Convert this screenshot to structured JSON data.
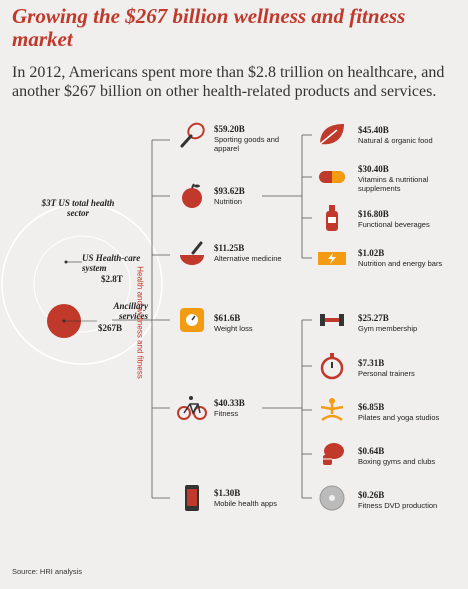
{
  "title": "Growing the $267 billion wellness and fitness market",
  "subtitle": "In 2012, Americans spent more than $2.8 trillion on healthcare, and another $267 billion on other health-related products and services.",
  "sector": {
    "total_label": "$3T US total health sector",
    "us_label": "US Health-care system",
    "us_value": "$2.8T",
    "ancillary_label": "Ancillary services",
    "ancillary_value": "$267B",
    "vertical_label": "Health and wellness and fitness"
  },
  "categories": [
    {
      "value": "$59.20B",
      "label": "Sporting goods and apparel",
      "icon": "tennis-racket-icon"
    },
    {
      "value": "$93.62B",
      "label": "Nutrition",
      "icon": "apple-icon"
    },
    {
      "value": "$11.25B",
      "label": "Alternative medicine",
      "icon": "mortar-pestle-icon"
    },
    {
      "value": "$61.6B",
      "label": "Weight loss",
      "icon": "scale-icon"
    },
    {
      "value": "$40.33B",
      "label": "Fitness",
      "icon": "bicycle-icon"
    },
    {
      "value": "$1.30B",
      "label": "Mobile health apps",
      "icon": "mobile-phone-icon"
    }
  ],
  "nutrition_sub": [
    {
      "value": "$45.40B",
      "label": "Natural & organic food",
      "icon": "leaf-icon"
    },
    {
      "value": "$30.40B",
      "label": "Vitamins & nutritional supplements",
      "icon": "pill-icon"
    },
    {
      "value": "$16.80B",
      "label": "Functional beverages",
      "icon": "beverage-bottle-icon"
    },
    {
      "value": "$1.02B",
      "label": "Nutrition and energy bars",
      "icon": "energy-bar-icon"
    }
  ],
  "fitness_sub": [
    {
      "value": "$25.27B",
      "label": "Gym membership",
      "icon": "dumbbell-icon"
    },
    {
      "value": "$7.31B",
      "label": "Personal trainers",
      "icon": "stopwatch-icon"
    },
    {
      "value": "$6.85B",
      "label": "Pilates and yoga studios",
      "icon": "yoga-icon"
    },
    {
      "value": "$0.64B",
      "label": "Boxing gyms and clubs",
      "icon": "boxing-glove-icon"
    },
    {
      "value": "$0.26B",
      "label": "Fitness DVD production",
      "icon": "dvd-icon"
    }
  ],
  "source": "Source: HRI analysis",
  "colors": {
    "accent": "#c0392b",
    "line": "#555555",
    "background": "#f0efee",
    "orange": "#f39c12"
  }
}
